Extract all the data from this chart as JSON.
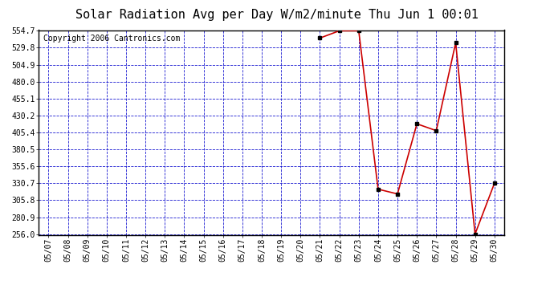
{
  "title": "Solar Radiation Avg per Day W/m2/minute Thu Jun 1 00:01",
  "copyright_text": "Copyright 2006 Cantronics.com",
  "x_labels": [
    "05/07",
    "05/08",
    "05/09",
    "05/10",
    "05/11",
    "05/12",
    "05/13",
    "05/14",
    "05/15",
    "05/16",
    "05/17",
    "05/18",
    "05/19",
    "05/20",
    "05/21",
    "05/22",
    "05/23",
    "05/24",
    "05/25",
    "05/26",
    "05/27",
    "05/28",
    "05/29",
    "05/30"
  ],
  "data_dates": [
    "05/21",
    "05/22",
    "05/23",
    "05/24",
    "05/25",
    "05/26",
    "05/27",
    "05/28",
    "05/29",
    "05/30"
  ],
  "data_values": [
    544.0,
    554.7,
    554.7,
    322.0,
    315.0,
    418.0,
    408.0,
    537.0,
    256.0,
    330.7
  ],
  "ylim_min": 256.0,
  "ylim_max": 554.7,
  "ytick_values": [
    256.0,
    280.9,
    305.8,
    330.7,
    355.6,
    380.5,
    405.4,
    430.2,
    455.1,
    480.0,
    504.9,
    529.8,
    554.7
  ],
  "line_color": "#cc0000",
  "marker_color": "#000000",
  "background_color": "#ffffff",
  "plot_bg_color": "#ffffff",
  "grid_color": "#0000cc",
  "title_fontsize": 11,
  "copyright_fontsize": 7,
  "tick_fontsize": 7
}
